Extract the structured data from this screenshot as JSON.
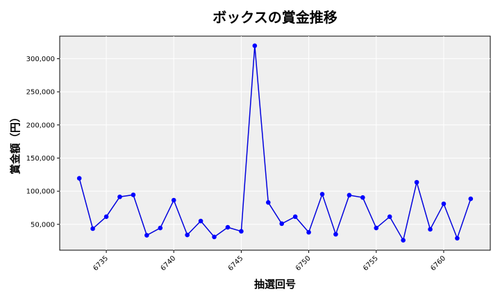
{
  "chart_data": {
    "type": "line",
    "title": "ボックスの賞金推移",
    "xlabel": "抽選回号",
    "ylabel": "賞金額（円）",
    "x": [
      6733,
      6734,
      6735,
      6736,
      6737,
      6738,
      6739,
      6740,
      6741,
      6742,
      6743,
      6744,
      6745,
      6746,
      6747,
      6748,
      6749,
      6750,
      6751,
      6752,
      6753,
      6754,
      6755,
      6756,
      6757,
      6758,
      6759,
      6760,
      6761,
      6762
    ],
    "series": [
      {
        "values": [
          119500,
          43500,
          61500,
          91500,
          94500,
          33500,
          44500,
          86500,
          34000,
          55000,
          31000,
          45500,
          39500,
          319500,
          83000,
          51000,
          61500,
          38000,
          95500,
          35000,
          94000,
          90500,
          44500,
          61500,
          26000,
          113500,
          42500,
          81000,
          29000,
          88500
        ]
      }
    ],
    "xlim": [
      6731.55,
      6763.45
    ],
    "ylim": [
      11000,
      334000
    ],
    "xticks": [
      6735,
      6740,
      6745,
      6750,
      6755,
      6760
    ],
    "yticks": [
      50000,
      100000,
      150000,
      200000,
      250000,
      300000
    ],
    "grid": true,
    "colors": {
      "line": "#0000dd",
      "marker": "#0000ff",
      "plot_bg": "#efefef",
      "grid": "#ffffff"
    }
  }
}
